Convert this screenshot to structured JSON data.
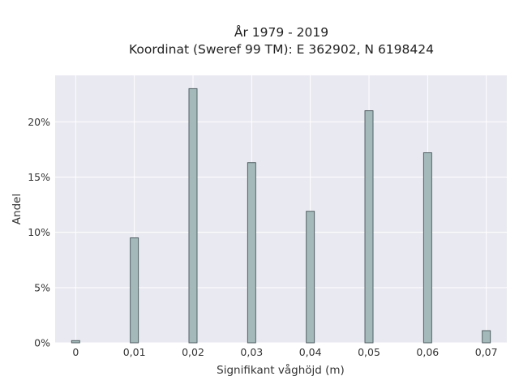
{
  "chart_data": {
    "type": "bar",
    "title": "År 1979 - 2019",
    "subtitle": "Koordinat (Sweref 99 TM): E 362902, N 6198424",
    "xlabel": "Signifikant våghöjd (m)",
    "ylabel": "Andel",
    "x": [
      0,
      0.01,
      0.02,
      0.03,
      0.04,
      0.05,
      0.06,
      0.07
    ],
    "x_tick_labels": [
      "0",
      "0,01",
      "0,02",
      "0,03",
      "0,04",
      "0,05",
      "0,06",
      "0,07"
    ],
    "values": [
      0.2,
      9.5,
      23.0,
      16.3,
      11.9,
      21.0,
      17.2,
      1.1
    ],
    "y_ticks": [
      0,
      5,
      10,
      15,
      20
    ],
    "y_tick_labels": [
      "0%",
      "5%",
      "10%",
      "15%",
      "20%"
    ],
    "xlim": [
      -0.0035,
      0.0735
    ],
    "ylim": [
      0,
      24.2
    ],
    "grid": true,
    "legend": "none",
    "bar_color": "#a3b9ba",
    "bar_edge_color": "#48555a",
    "plot_background": "#e9e9f1",
    "grid_color": "#ffffff"
  }
}
